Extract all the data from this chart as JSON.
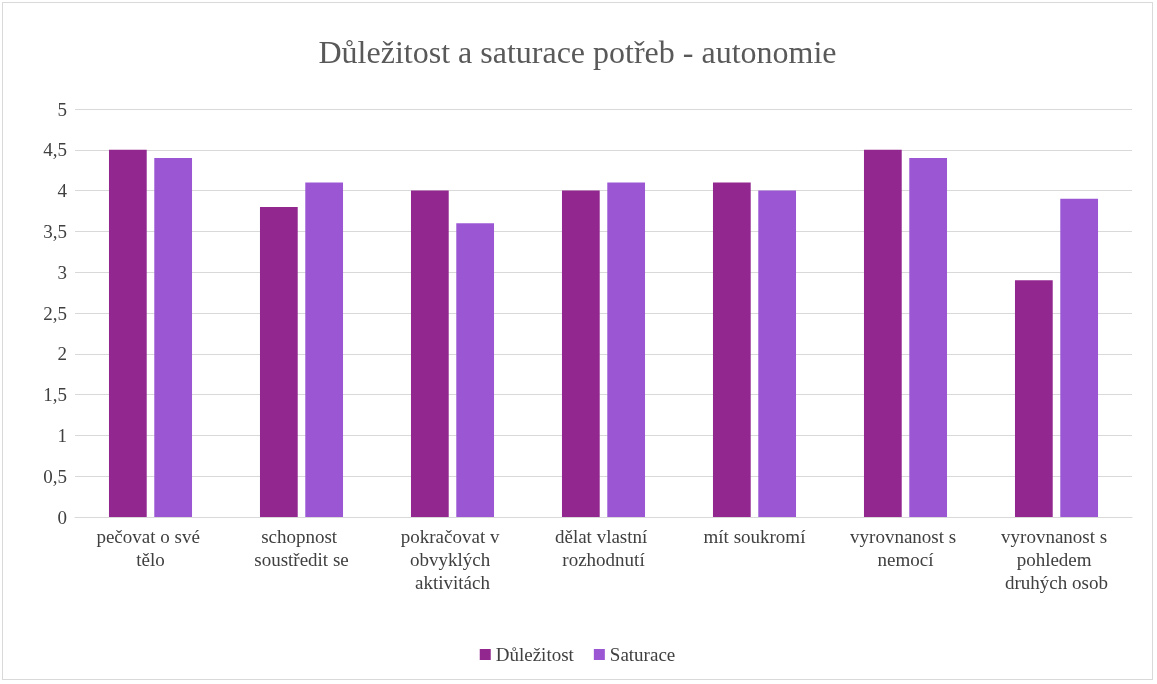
{
  "chart_data": {
    "type": "bar",
    "title": "Důležitost a saturace potřeb - autonomie",
    "categories": [
      "pečovat o své tělo",
      "schopnost soustředit se",
      "pokračovat v obvyklých aktivitách",
      "dělat vlastní rozhodnutí",
      "mít soukromí",
      "vyrovnanost s nemocí",
      "vyrovnanost s pohledem druhých osob"
    ],
    "series": [
      {
        "name": "Důležitost",
        "color": "#92278f",
        "values": [
          4.5,
          3.8,
          4.0,
          4.0,
          4.1,
          4.5,
          2.9
        ]
      },
      {
        "name": "Saturace",
        "color": "#9b57d3",
        "values": [
          4.4,
          4.1,
          3.6,
          4.1,
          4.0,
          4.4,
          3.9
        ]
      }
    ],
    "ylim": [
      0,
      5
    ],
    "yticks": [
      0,
      {
        "value": 0.5,
        "label": "0,5"
      },
      1,
      {
        "value": 1.5,
        "label": "1,5"
      },
      2,
      {
        "value": 2.5,
        "label": "2,5"
      },
      3,
      {
        "value": 3.5,
        "label": "3,5"
      },
      4,
      {
        "value": 4.5,
        "label": "4,5"
      },
      5
    ],
    "grid": "y",
    "legend": "bottom"
  }
}
